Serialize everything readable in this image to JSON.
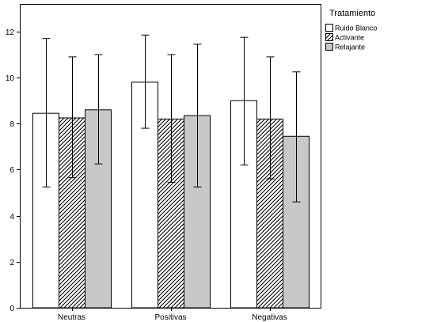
{
  "chart_data": {
    "type": "bar",
    "title": "",
    "xlabel": "",
    "ylabel": "",
    "categories": [
      "Neutras",
      "Positivas",
      "Negativas"
    ],
    "ylim": [
      0,
      13.2
    ],
    "yticks": [
      0,
      2,
      4,
      6,
      8,
      10,
      12
    ],
    "grid": false,
    "error_bars": true,
    "legend": {
      "title": "Tratamiento",
      "placement": "right"
    },
    "series": [
      {
        "name": "Ruido Blanco",
        "fill": "#ffffff",
        "pattern": "solid",
        "values": [
          8.45,
          9.8,
          9.0
        ],
        "err_low": [
          5.25,
          7.8,
          6.2
        ],
        "err_high": [
          11.7,
          11.85,
          11.75
        ]
      },
      {
        "name": "Activante",
        "fill": "#ffffff",
        "pattern": "diagonal-hatch",
        "values": [
          8.25,
          8.2,
          8.2
        ],
        "err_low": [
          5.65,
          5.45,
          5.6
        ],
        "err_high": [
          10.9,
          11.0,
          10.9
        ]
      },
      {
        "name": "Relajante",
        "fill": "#c8c8c8",
        "pattern": "solid",
        "values": [
          8.6,
          8.35,
          7.45
        ],
        "err_low": [
          6.25,
          5.25,
          4.6
        ],
        "err_high": [
          11.0,
          11.45,
          10.25
        ]
      }
    ]
  }
}
